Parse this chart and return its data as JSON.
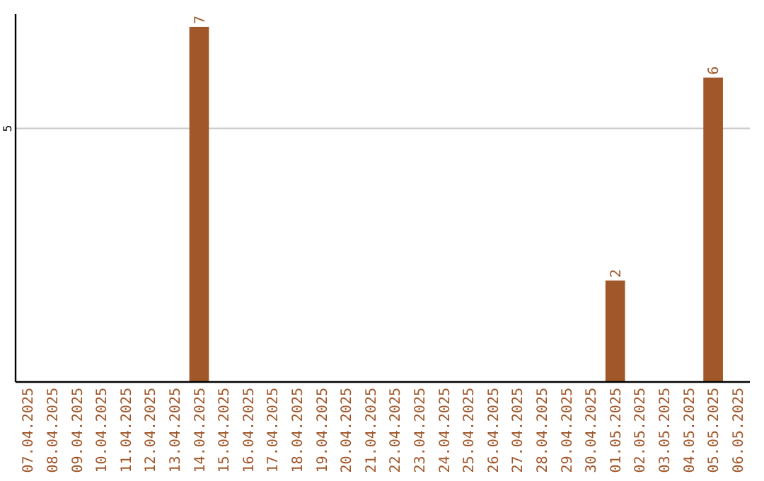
{
  "chart_data": {
    "type": "bar",
    "categories": [
      "07.04.2025",
      "08.04.2025",
      "09.04.2025",
      "10.04.2025",
      "11.04.2025",
      "12.04.2025",
      "13.04.2025",
      "14.04.2025",
      "15.04.2025",
      "16.04.2025",
      "17.04.2025",
      "18.04.2025",
      "19.04.2025",
      "20.04.2025",
      "21.04.2025",
      "22.04.2025",
      "23.04.2025",
      "24.04.2025",
      "25.04.2025",
      "26.04.2025",
      "27.04.2025",
      "28.04.2025",
      "29.04.2025",
      "30.04.2025",
      "01.05.2025",
      "02.05.2025",
      "03.05.2025",
      "04.05.2025",
      "05.05.2025",
      "06.05.2025"
    ],
    "values": [
      0,
      0,
      0,
      0,
      0,
      0,
      0,
      7,
      0,
      0,
      0,
      0,
      0,
      0,
      0,
      0,
      0,
      0,
      0,
      0,
      0,
      0,
      0,
      0,
      2,
      0,
      0,
      0,
      6,
      0
    ],
    "value_labels": [
      null,
      null,
      null,
      null,
      null,
      null,
      null,
      "7",
      null,
      null,
      null,
      null,
      null,
      null,
      null,
      null,
      null,
      null,
      null,
      null,
      null,
      null,
      null,
      null,
      "2",
      null,
      null,
      null,
      "6",
      null
    ],
    "color": "#a0572a",
    "ylim": [
      0,
      7.25
    ],
    "yticks": [
      5
    ],
    "grid": "y"
  }
}
